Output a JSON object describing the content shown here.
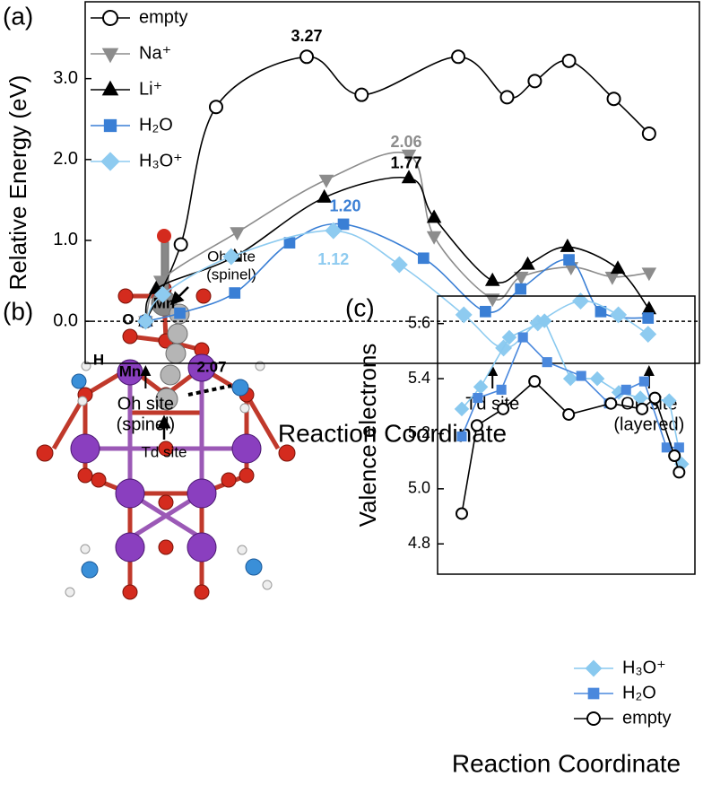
{
  "chart_data": [
    {
      "type": "line",
      "panel_label": "(a)",
      "x_label": "Reaction Coordinate",
      "y_label": "Relative Energy  (eV)",
      "xlim": [
        -1.2,
        11
      ],
      "ylim": [
        -0.52,
        3.95
      ],
      "yticks": [
        {
          "value": 0,
          "label": "0.0"
        },
        {
          "value": 1,
          "label": "1.0"
        },
        {
          "value": 2,
          "label": "2.0"
        },
        {
          "value": 3,
          "label": "3.0"
        }
      ],
      "zero_line": true,
      "smooth": true,
      "legend": "upper left",
      "site_labels": [
        {
          "x": 0,
          "lines": [
            "Oh site",
            "(spinel)"
          ]
        },
        {
          "x": 6.89,
          "lines": [
            "Td site"
          ]
        },
        {
          "x": 10,
          "lines": [
            "Oh site",
            "(layered)"
          ]
        }
      ],
      "series": [
        {
          "name": "empty",
          "color": "#000000",
          "marker": "circle-open",
          "peak_label": "3.27",
          "x": [
            0,
            0.7,
            1.4,
            3.2,
            4.29,
            6.21,
            7.18,
            7.73,
            8.41,
            9.3,
            10
          ],
          "values": [
            0,
            0.95,
            2.65,
            3.27,
            2.8,
            3.27,
            2.77,
            2.97,
            3.22,
            2.75,
            2.32
          ]
        },
        {
          "name": "Na⁺",
          "color": "#8c8c8c",
          "marker": "triangle-down",
          "peak_label": "2.06",
          "x": [
            0,
            0.3,
            1.82,
            3.59,
            5.23,
            5.73,
            6.89,
            7.46,
            8.45,
            9.27,
            10
          ],
          "values": [
            0,
            0.5,
            1.1,
            1.75,
            2.06,
            1.05,
            0.28,
            0.55,
            0.67,
            0.55,
            0.6
          ]
        },
        {
          "name": "Li⁺",
          "color": "#000000",
          "marker": "triangle-up",
          "peak_label": "1.77",
          "x": [
            0,
            0.21,
            1.77,
            3.55,
            5.23,
            5.73,
            6.89,
            7.59,
            8.38,
            9.38,
            10
          ],
          "values": [
            0,
            0.4,
            0.8,
            1.53,
            1.77,
            1.28,
            0.5,
            0.7,
            0.92,
            0.65,
            0.15
          ]
        },
        {
          "name": "H₂O",
          "color": "#3a7fd5",
          "marker": "square",
          "peak_label": "1.20",
          "x": [
            0,
            0.68,
            1.77,
            2.86,
            3.93,
            5.52,
            6.75,
            7.45,
            8.41,
            9.04,
            9.98
          ],
          "values": [
            0,
            0.1,
            0.35,
            0.97,
            1.2,
            0.78,
            0.12,
            0.4,
            0.76,
            0.12,
            0.04
          ]
        },
        {
          "name": "H₃O⁺",
          "color": "#8ecbf0",
          "marker": "diamond",
          "peak_label": "1.12",
          "x": [
            0,
            0.34,
            1.7,
            3.73,
            5.04,
            6.32,
            7.11,
            7.79,
            8.64,
            9.39,
            9.98
          ],
          "values": [
            0,
            0.33,
            0.8,
            1.12,
            0.7,
            0.08,
            -0.33,
            -0.02,
            0.25,
            0.08,
            -0.16
          ]
        }
      ]
    },
    {
      "type": "line",
      "panel_label": "(c)",
      "x_label": "Reaction Coordinate",
      "y_label": "Valence electrons",
      "xlim": [
        -1.1,
        10.6
      ],
      "ylim": [
        4.69,
        5.7
      ],
      "yticks": [
        4.8,
        {
          "value": 5,
          "label": "5.0"
        },
        5.2,
        5.4,
        5.6
      ],
      "smooth": false,
      "legend": "lower right",
      "series": [
        {
          "name": "H₃O⁺",
          "color": "#89c9ef",
          "marker": "diamond",
          "x": [
            0,
            0.86,
            2.16,
            3.76,
            4.94,
            6.16,
            7.14,
            8.12,
            9.43,
            10
          ],
          "values": [
            5.29,
            5.37,
            5.55,
            5.61,
            5.4,
            5.4,
            5.35,
            5.33,
            5.32,
            5.09
          ]
        },
        {
          "name": "H₂O",
          "color": "#4a88dd",
          "marker": "square",
          "x": [
            0,
            0.73,
            1.8,
            2.78,
            3.88,
            5.43,
            6.69,
            7.47,
            8.29,
            9.31,
            9.88
          ],
          "values": [
            5.19,
            5.33,
            5.36,
            5.55,
            5.46,
            5.41,
            5.31,
            5.36,
            5.39,
            5.15,
            5.15
          ]
        },
        {
          "name": "empty",
          "color": "#000000",
          "marker": "circle-open",
          "x": [
            0,
            0.69,
            1.88,
            3.31,
            4.86,
            6.78,
            8.2,
            8.78,
            9.67,
            9.88
          ],
          "values": [
            4.91,
            5.23,
            5.29,
            5.39,
            5.27,
            5.31,
            5.29,
            5.33,
            5.12,
            5.06
          ]
        }
      ]
    }
  ],
  "panel_b": {
    "panel_label": "(b)",
    "oh_site": [
      "Oh site",
      "(spinel)"
    ],
    "mn_top": "Mn",
    "mn_left": "Mn",
    "o_label": "O",
    "h_label": "H",
    "distance": "2.07",
    "td_site": "Td site"
  }
}
